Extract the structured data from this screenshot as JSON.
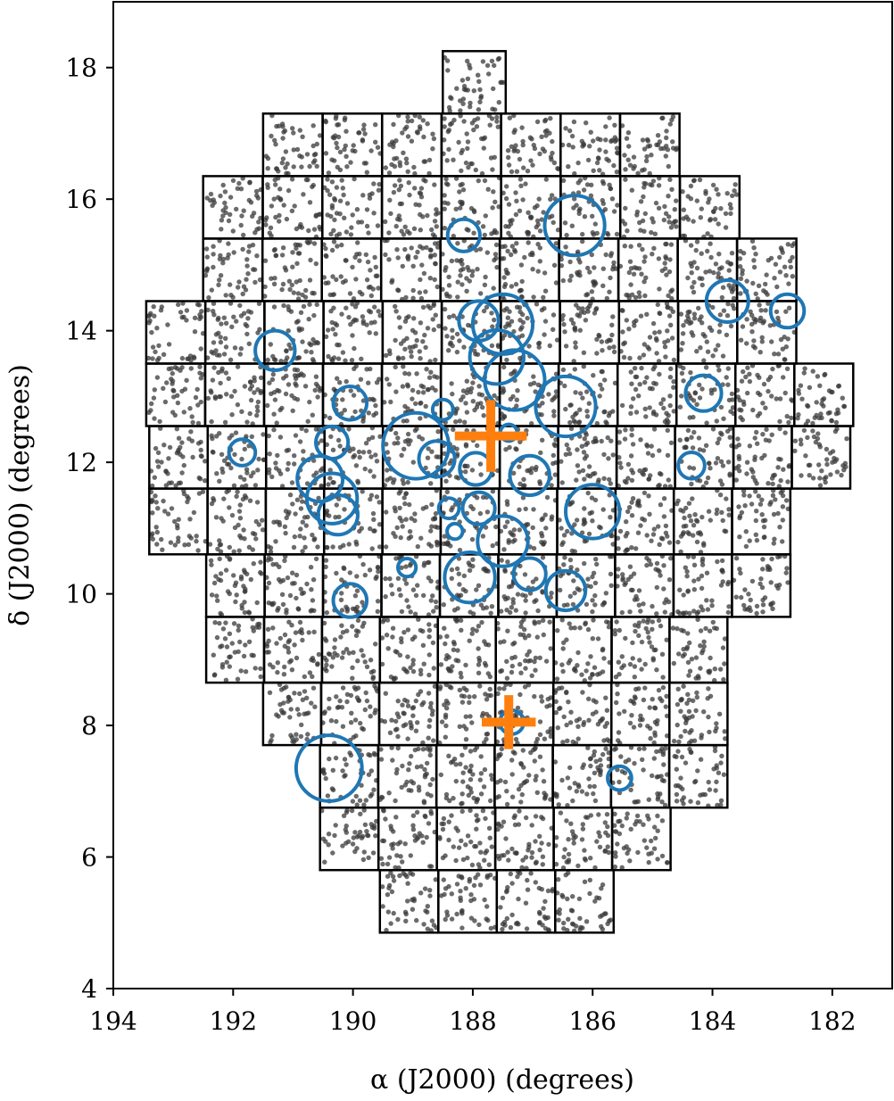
{
  "chart_data": {
    "type": "scatter",
    "xlabel": "α (J2000) (degrees)",
    "ylabel": "δ (J2000) (degrees)",
    "xlim": [
      194,
      181
    ],
    "ylim": [
      4,
      19
    ],
    "x_inverted": true,
    "xticks": [
      194,
      192,
      190,
      188,
      186,
      184,
      182
    ],
    "yticks": [
      4,
      6,
      8,
      10,
      12,
      14,
      16,
      18
    ],
    "grid": false,
    "colors": {
      "points": "#3a3a3a",
      "tiles": "#000000",
      "circles": "#1f77b4",
      "crosses": "#ff7f0e"
    },
    "tile_rows": [
      {
        "dec": [
          18.25,
          17.3
        ],
        "ra": [
          188.5,
          187.45
        ],
        "cols": 1
      },
      {
        "dec": [
          17.3,
          16.35
        ],
        "ra": [
          191.5,
          184.55
        ],
        "cols": 7
      },
      {
        "dec": [
          16.35,
          15.4
        ],
        "ra": [
          192.5,
          183.55
        ],
        "cols": 9
      },
      {
        "dec": [
          15.4,
          14.45
        ],
        "ra": [
          192.5,
          182.6
        ],
        "cols": 10
      },
      {
        "dec": [
          14.45,
          13.5
        ],
        "ra": [
          193.45,
          182.6
        ],
        "cols": 11
      },
      {
        "dec": [
          13.5,
          12.55
        ],
        "ra": [
          193.45,
          181.65
        ],
        "cols": 12
      },
      {
        "dec": [
          12.55,
          11.6
        ],
        "ra": [
          193.4,
          181.7
        ],
        "cols": 12
      },
      {
        "dec": [
          11.6,
          10.6
        ],
        "ra": [
          193.4,
          182.7
        ],
        "cols": 11
      },
      {
        "dec": [
          10.6,
          9.65
        ],
        "ra": [
          192.45,
          182.7
        ],
        "cols": 10
      },
      {
        "dec": [
          9.65,
          8.65
        ],
        "ra": [
          192.45,
          183.75
        ],
        "cols": 9
      },
      {
        "dec": [
          8.65,
          7.7
        ],
        "ra": [
          191.5,
          183.75
        ],
        "cols": 8
      },
      {
        "dec": [
          7.7,
          6.75
        ],
        "ra": [
          190.55,
          183.75
        ],
        "cols": 7
      },
      {
        "dec": [
          6.75,
          5.8
        ],
        "ra": [
          190.55,
          184.7
        ],
        "cols": 6
      },
      {
        "dec": [
          5.8,
          4.85
        ],
        "ra": [
          189.55,
          185.65
        ],
        "cols": 4
      }
    ],
    "circles": [
      {
        "ra": 186.3,
        "dec": 15.6,
        "r": 0.5
      },
      {
        "ra": 188.15,
        "dec": 15.45,
        "r": 0.27
      },
      {
        "ra": 183.75,
        "dec": 14.45,
        "r": 0.35
      },
      {
        "ra": 182.75,
        "dec": 14.3,
        "r": 0.28
      },
      {
        "ra": 187.5,
        "dec": 14.1,
        "r": 0.5
      },
      {
        "ra": 187.9,
        "dec": 14.15,
        "r": 0.33
      },
      {
        "ra": 191.3,
        "dec": 13.7,
        "r": 0.33
      },
      {
        "ra": 187.6,
        "dec": 13.6,
        "r": 0.45
      },
      {
        "ra": 187.3,
        "dec": 13.25,
        "r": 0.5
      },
      {
        "ra": 184.15,
        "dec": 13.05,
        "r": 0.3
      },
      {
        "ra": 186.45,
        "dec": 12.85,
        "r": 0.5
      },
      {
        "ra": 190.05,
        "dec": 12.9,
        "r": 0.28
      },
      {
        "ra": 188.5,
        "dec": 12.8,
        "r": 0.17
      },
      {
        "ra": 187.4,
        "dec": 12.45,
        "r": 0.14
      },
      {
        "ra": 188.95,
        "dec": 12.25,
        "r": 0.55
      },
      {
        "ra": 190.35,
        "dec": 12.3,
        "r": 0.27
      },
      {
        "ra": 191.85,
        "dec": 12.15,
        "r": 0.22
      },
      {
        "ra": 188.6,
        "dec": 12.05,
        "r": 0.3
      },
      {
        "ra": 187.95,
        "dec": 11.9,
        "r": 0.27
      },
      {
        "ra": 184.35,
        "dec": 11.95,
        "r": 0.22
      },
      {
        "ra": 187.05,
        "dec": 11.8,
        "r": 0.33
      },
      {
        "ra": 190.55,
        "dec": 11.75,
        "r": 0.38
      },
      {
        "ra": 190.35,
        "dec": 11.45,
        "r": 0.42
      },
      {
        "ra": 190.25,
        "dec": 11.2,
        "r": 0.33
      },
      {
        "ra": 188.4,
        "dec": 11.3,
        "r": 0.17
      },
      {
        "ra": 187.9,
        "dec": 11.3,
        "r": 0.27
      },
      {
        "ra": 186.0,
        "dec": 11.25,
        "r": 0.45
      },
      {
        "ra": 187.5,
        "dec": 10.8,
        "r": 0.42
      },
      {
        "ra": 188.3,
        "dec": 10.95,
        "r": 0.13
      },
      {
        "ra": 189.1,
        "dec": 10.4,
        "r": 0.15
      },
      {
        "ra": 188.05,
        "dec": 10.25,
        "r": 0.42
      },
      {
        "ra": 187.05,
        "dec": 10.3,
        "r": 0.27
      },
      {
        "ra": 186.45,
        "dec": 10.05,
        "r": 0.33
      },
      {
        "ra": 190.05,
        "dec": 9.9,
        "r": 0.28
      },
      {
        "ra": 187.35,
        "dec": 8.05,
        "r": 0.2
      },
      {
        "ra": 190.4,
        "dec": 7.35,
        "r": 0.55
      },
      {
        "ra": 185.55,
        "dec": 7.2,
        "r": 0.2
      }
    ],
    "crosses": [
      {
        "ra": 187.7,
        "dec": 12.4,
        "size": 0.6
      },
      {
        "ra": 187.4,
        "dec": 8.05,
        "size": 0.45
      }
    ]
  }
}
